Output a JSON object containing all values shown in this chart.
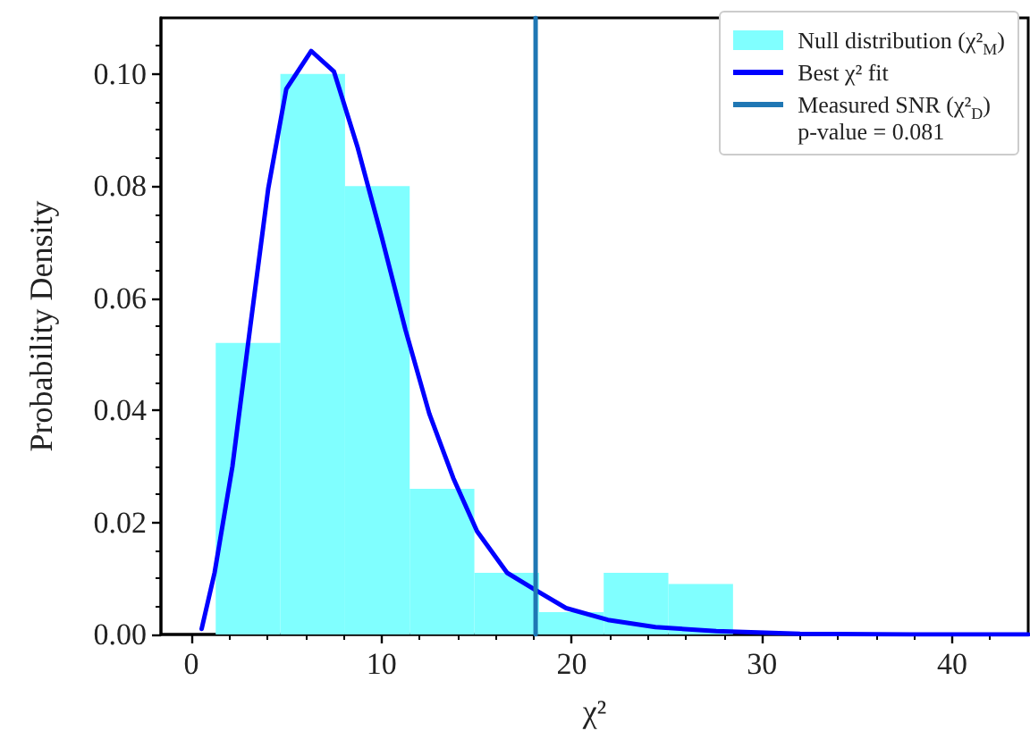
{
  "chart_data": {
    "type": "histogram",
    "xlabel": "χ²",
    "ylabel": "Probability Density",
    "bins": [
      1.28,
      4.68,
      8.08,
      11.48,
      14.88,
      18.28,
      21.68,
      25.08,
      28.48
    ],
    "series": [
      {
        "name": "Null distribution (χ²$_{M}$)",
        "color": "#80ffff",
        "values": [
          0.052,
          0.1,
          0.08,
          0.026,
          0.011,
          0.004,
          0.011,
          0.009
        ]
      },
      {
        "type": "line",
        "name": "Best χ² fit",
        "color": "#0000ff",
        "x": [
          0.54,
          1.22,
          2.16,
          3.1,
          4.04,
          4.99,
          6.3,
          7.5,
          8.75,
          10.0,
          11.26,
          12.51,
          13.77,
          15.02,
          16.6,
          18.1,
          19.7,
          21.9,
          24.4,
          27.6,
          32,
          38,
          44
        ],
        "values": [
          0.001,
          0.011,
          0.03,
          0.055,
          0.0795,
          0.0973,
          0.1041,
          0.1004,
          0.0868,
          0.071,
          0.0543,
          0.0394,
          0.0279,
          0.0184,
          0.011,
          0.0079,
          0.0047,
          0.0026,
          0.0013,
          0.0006,
          0.0001,
          0,
          0
        ]
      },
      {
        "type": "line",
        "name": "Measured SNR (χ²$_{D}$)",
        "color": "#1f77b4",
        "x": [
          18.1,
          18.1
        ],
        "values": [
          0,
          0.11
        ]
      }
    ],
    "annotations": [
      "p-value = 0.081"
    ],
    "xlim": [
      -1.6,
      44
    ],
    "xticks": [
      0,
      10,
      20,
      30,
      40
    ],
    "ylim": [
      0,
      0.11
    ],
    "yticks": [
      {
        "value": 0,
        "label": "0.00"
      },
      {
        "value": 0.02,
        "label": "0.02"
      },
      {
        "value": 0.04,
        "label": "0.04"
      },
      {
        "value": 0.06,
        "label": "0.06"
      },
      {
        "value": 0.08,
        "label": "0.08"
      },
      {
        "value": 0.1,
        "label": "0.10"
      }
    ],
    "grid": false,
    "legend": "top right",
    "line_style": "solid",
    "marker": "none"
  }
}
